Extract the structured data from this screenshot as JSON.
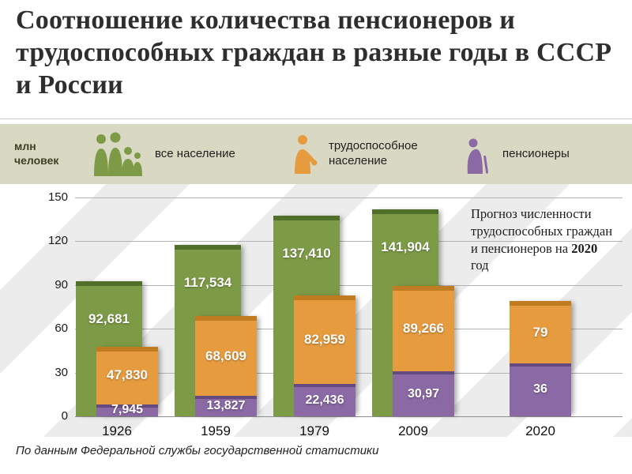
{
  "title": "Соотношение количества пенсионеров и трудоспособных граждан в разные годы в СССР и России",
  "y_axis_unit": "млн человек",
  "legend": {
    "items": [
      {
        "label": "все население",
        "color": "#7d9b47",
        "icon": "people-group-icon"
      },
      {
        "label": "трудоспособное население",
        "color": "#e79b3f",
        "icon": "worker-icon"
      },
      {
        "label": "пенсионеры",
        "color": "#8a69a4",
        "icon": "pensioner-icon"
      }
    ]
  },
  "annotation": {
    "text": "Прогноз численности трудоспособных граждан и пенсионеров на ",
    "year": "2020",
    "suffix": " год"
  },
  "footer": "По данным Федеральной службы государственной статистики",
  "colors": {
    "population": "#7d9b47",
    "working": "#e79b3f",
    "pensioners": "#8a69a4",
    "legend_band": "#d9d8c2"
  },
  "chart_data": {
    "type": "bar",
    "categories": [
      "1926",
      "1959",
      "1979",
      "2009",
      "2020"
    ],
    "series": [
      {
        "name": "все население",
        "values": [
          92.681,
          117.534,
          137.41,
          141.904,
          null
        ],
        "labels": [
          "92,681",
          "117,534",
          "137,410",
          "141,904",
          null
        ]
      },
      {
        "name": "трудоспособное население",
        "values": [
          47.83,
          68.609,
          82.959,
          89.266,
          79
        ],
        "labels": [
          "47,830",
          "68,609",
          "82,959",
          "89,266",
          "79"
        ]
      },
      {
        "name": "пенсионеры",
        "values": [
          7.945,
          13.827,
          22.436,
          30.97,
          36
        ],
        "labels": [
          "7,945",
          "13,827",
          "22,436",
          "30,97",
          "36"
        ]
      }
    ],
    "ylabel": "млн человек",
    "ylim": [
      0,
      150
    ],
    "yticks": [
      0,
      30,
      60,
      90,
      120,
      150
    ],
    "grid": true,
    "legend_position": "top"
  }
}
